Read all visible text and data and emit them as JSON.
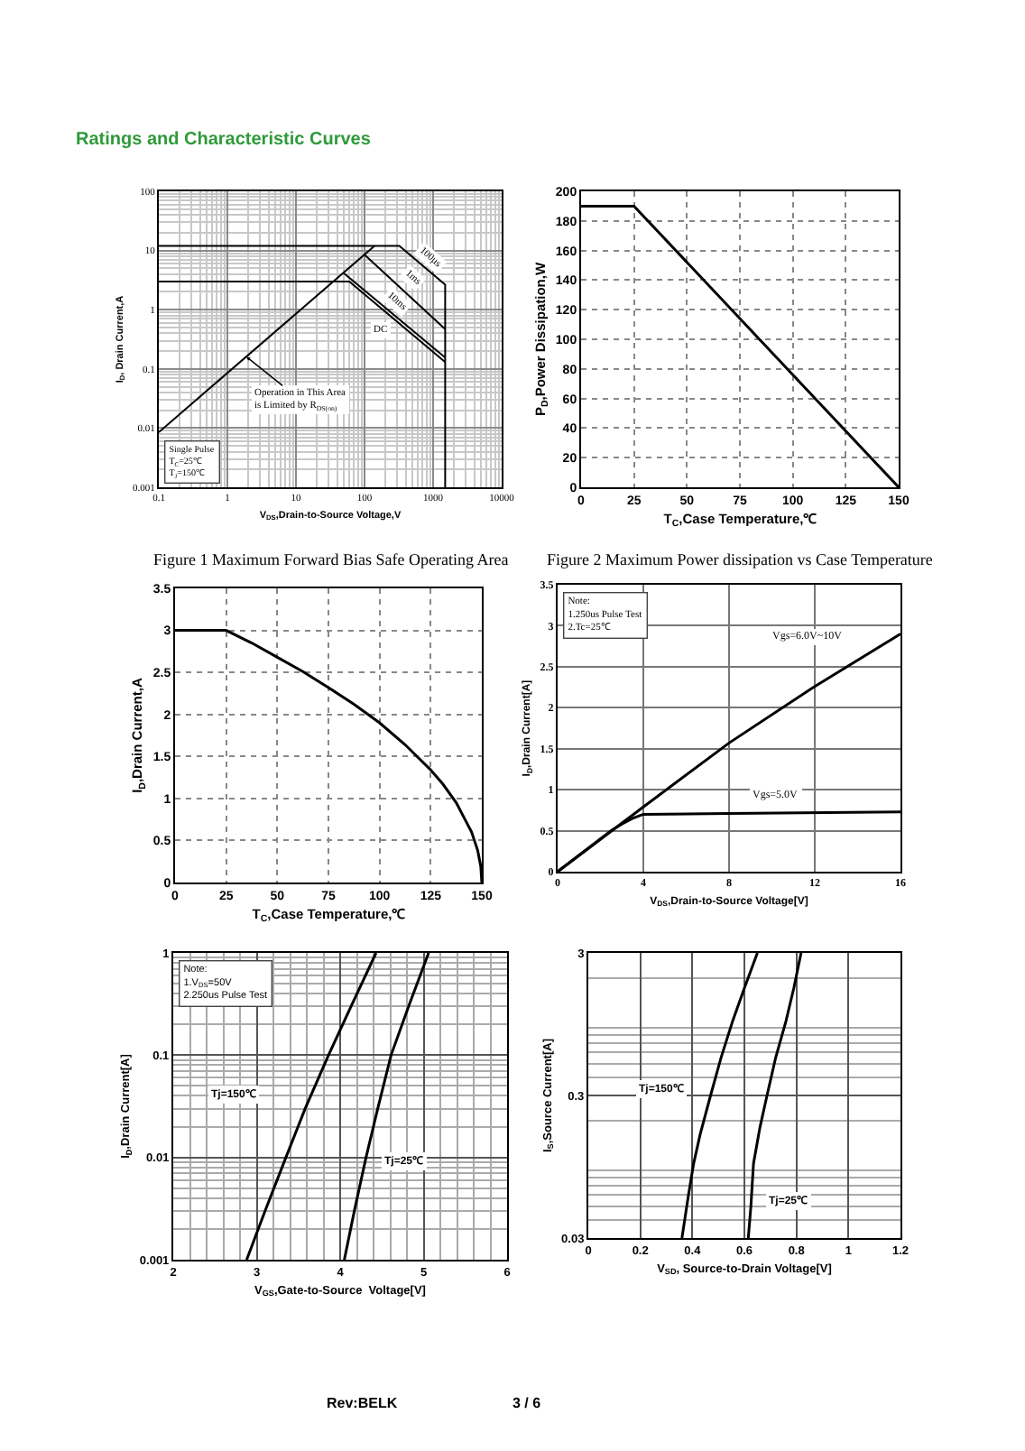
{
  "chart_data": [
    {
      "type": "line",
      "title": "Figure 1 Maximum Forward Bias Safe Operating Area",
      "xlabel": "V$_{DS}$,Drain-to-Source Voltage,V",
      "ylabel": "I$_{D}$, Drain Current,A",
      "log": "xy",
      "xlim": [
        0.1,
        10000
      ],
      "ylim": [
        0.001,
        100
      ],
      "xticks": [
        0.1,
        1,
        10,
        100,
        1000,
        10000
      ],
      "yticks": [
        0.001,
        0.01,
        0.1,
        1,
        10,
        100
      ],
      "grid": true,
      "series": [
        {
          "color": "#000000",
          "x": [
            0.1,
            140
          ],
          "values": [
            0.0085,
            12
          ]
        },
        {
          "color": "#000000",
          "x": [
            0.1,
            322,
            1500,
            1500
          ],
          "values": [
            12,
            12,
            2.65,
            0.001
          ]
        },
        {
          "color": "#000000",
          "x": [
            100,
            1500
          ],
          "values": [
            8.5,
            0.47
          ]
        },
        {
          "color": "#000000",
          "x": [
            49,
            1500
          ],
          "values": [
            4.2,
            0.155
          ]
        },
        {
          "color": "#000000",
          "x": [
            0.1,
            60,
            1500
          ],
          "values": [
            3,
            3,
            0.13
          ]
        }
      ],
      "annotations": [
        "Ratings and Characteristic Curves",
        "Single Pulse\nT$_{C}$=25℃\nT$_{J}$=150℃",
        {
          "text": "Operation in This Area\nis Limited by R$_{DS(on)}$",
          "x": 1.9,
          "y": 0.16
        },
        {
          "text": "100µs",
          "x": 900,
          "y": 7.2
        },
        {
          "text": "1ms",
          "x": 500,
          "y": 3.4
        },
        {
          "text": "10ms",
          "x": 290,
          "y": 1.4
        },
        {
          "text": "DC",
          "x": 175,
          "y": 0.44
        }
      ]
    },
    {
      "type": "line",
      "title": "Figure 2 Maximum Power dissipation vs Case Temperature",
      "xlabel": "T$_{C}$,Case Temperature,℃",
      "ylabel": "P$_{D}$,Power Dissipation,W",
      "xlim": [
        0,
        150
      ],
      "ylim": [
        0,
        200
      ],
      "xticks": [
        0,
        25,
        50,
        75,
        100,
        125,
        150
      ],
      "yticks": [
        0,
        20,
        40,
        60,
        80,
        100,
        120,
        140,
        160,
        180,
        200
      ],
      "grid": true,
      "x": [
        0,
        25,
        150
      ],
      "values": [
        190,
        190,
        0
      ],
      "color": "#000000"
    },
    {
      "type": "line",
      "xlabel": "T$_{C}$,Case Temperature,℃",
      "ylabel": "I$_{D}$,Drain Current,A",
      "xlim": [
        0,
        150
      ],
      "ylim": [
        0,
        3.5
      ],
      "xticks": [
        0,
        25,
        50,
        75,
        100,
        125,
        150
      ],
      "yticks": [
        0,
        0.5,
        1,
        1.5,
        2,
        2.5,
        3,
        3.5
      ],
      "grid": true,
      "x": [
        0,
        25,
        37.5,
        50,
        62.5,
        75,
        87.5,
        100,
        112.5,
        125,
        131,
        137.5,
        142,
        145,
        148,
        149.5,
        150
      ],
      "values": [
        3,
        3,
        2.85,
        2.68,
        2.51,
        2.32,
        2.12,
        1.9,
        1.64,
        1.34,
        1.17,
        0.95,
        0.74,
        0.6,
        0.38,
        0.19,
        0
      ],
      "color": "#000000"
    },
    {
      "type": "line",
      "xlabel": "V$_{DS}$,Drain-to-Source Voltage[V]",
      "ylabel": "I$_{D}$,Drain Current[A]",
      "xlim": [
        0,
        16
      ],
      "ylim": [
        0,
        3.5
      ],
      "xticks": [
        0,
        4,
        8,
        12,
        16
      ],
      "yticks": [
        0,
        0.5,
        1,
        1.5,
        2,
        2.5,
        3,
        3.5
      ],
      "grid": true,
      "series": [
        {
          "color": "#000000",
          "x": [
            0,
            4,
            8,
            12,
            16
          ],
          "values": [
            0,
            0.79,
            1.57,
            2.26,
            2.9
          ]
        },
        {
          "color": "#000000",
          "x": [
            0,
            2.5,
            3,
            3.5,
            4,
            8,
            16
          ],
          "values": [
            0,
            0.5,
            0.58,
            0.65,
            0.7,
            0.71,
            0.73
          ]
        }
      ],
      "annotations": [
        "Note:\n1.250us Pulse Test\n2.Tc=25℃",
        "Vgs=6.0V~10V",
        {
          "text": "Vgs=5.0V",
          "x": 10.2,
          "y": 0.92
        }
      ]
    },
    {
      "type": "line",
      "xlabel": "V$_{GS}$,Gate-to-Source  Voltage[V]",
      "ylabel": "I$_{D}$,Drain Current[A]",
      "log": "y",
      "xlim": [
        2,
        6
      ],
      "ylim": [
        0.001,
        1
      ],
      "xticks": [
        2,
        3,
        4,
        5,
        6
      ],
      "yticks": [
        0.001,
        0.01,
        0.1,
        1
      ],
      "grid": true,
      "series": [
        {
          "color": "#000000",
          "x": [
            2.88,
            3.1,
            3.35,
            3.58,
            3.86,
            4.13,
            4.43
          ],
          "values": [
            0.001,
            0.003,
            0.01,
            0.03,
            0.1,
            0.3,
            1
          ]
        },
        {
          "color": "#000000",
          "x": [
            4.05,
            4.17,
            4.31,
            4.45,
            4.61,
            4.82,
            5.06
          ],
          "values": [
            0.001,
            0.003,
            0.01,
            0.03,
            0.1,
            0.3,
            1
          ]
        }
      ],
      "annotations": [
        "Note:\n1.V$_{DS}$=50V\n2.250us Pulse Test",
        {
          "text": "Tj=150℃",
          "x": 2.72,
          "y": 0.042
        },
        {
          "text": "Tj=25℃",
          "x": 4.76,
          "y": 0.0093
        }
      ]
    },
    {
      "type": "line",
      "xlabel": "V$_{SD}$, Source-to-Drain Voltage[V]",
      "ylabel": "I$_{S}$,Source Current[A]",
      "log": "y",
      "xlim": [
        0,
        1.2
      ],
      "ylim": [
        0.03,
        3
      ],
      "xticks": [
        0,
        0.2,
        0.4,
        0.6,
        0.8,
        1,
        1.2
      ],
      "yticks": [
        0.03,
        0.3,
        3
      ],
      "grid": true,
      "series": [
        {
          "color": "#000000",
          "x": [
            0.36,
            0.385,
            0.405,
            0.43,
            0.47,
            0.51,
            0.555,
            0.6,
            0.65
          ],
          "values": [
            0.03,
            0.06,
            0.1,
            0.16,
            0.3,
            0.55,
            1,
            1.7,
            3
          ]
        },
        {
          "color": "#000000",
          "x": [
            0.615,
            0.625,
            0.635,
            0.66,
            0.687,
            0.72,
            0.76,
            0.79,
            0.818
          ],
          "values": [
            0.03,
            0.05,
            0.1,
            0.18,
            0.3,
            0.55,
            1,
            1.7,
            3
          ]
        }
      ],
      "annotations": [
        {
          "text": "Tj=150℃",
          "x": 0.28,
          "y": 0.33
        },
        {
          "text": "Tj=25℃",
          "x": 0.77,
          "y": 0.054
        },
        "Rev:BELK",
        "3 / 6"
      ]
    }
  ]
}
